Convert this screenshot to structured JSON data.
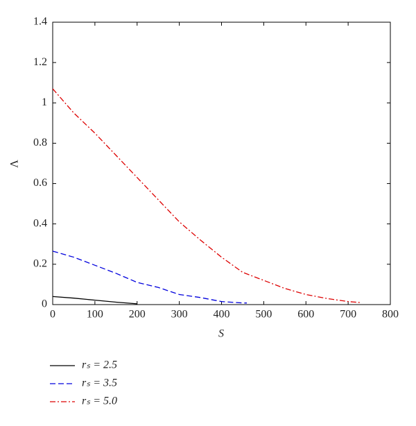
{
  "chart_data": {
    "type": "line",
    "x_label": "S",
    "y_label": "Λ",
    "xlim": [
      0,
      800
    ],
    "xticks": [
      0,
      100,
      200,
      300,
      400,
      500,
      600,
      700,
      800
    ],
    "ylim": [
      0,
      1.4
    ],
    "yticks": [
      0,
      0.2,
      0.4,
      0.6,
      0.8,
      1,
      1.2,
      1.4
    ],
    "grid": false,
    "legend": "below",
    "series": [
      {
        "name": "rₛ = 2.5",
        "color": "#000000",
        "dash": "solid",
        "x": [
          0,
          50,
          100,
          150,
          200
        ],
        "values": [
          0.04,
          0.032,
          0.022,
          0.012,
          0.004
        ]
      },
      {
        "name": "rₛ = 3.5",
        "color": "#0000dd",
        "dash": "dashed",
        "x": [
          0,
          50,
          100,
          150,
          200,
          250,
          300,
          350,
          400,
          450,
          460
        ],
        "values": [
          0.265,
          0.235,
          0.195,
          0.155,
          0.11,
          0.085,
          0.05,
          0.035,
          0.015,
          0.008,
          0.008
        ]
      },
      {
        "name": "rₛ = 5.0",
        "color": "#dd0000",
        "dash": "dashdot",
        "x": [
          0,
          50,
          100,
          150,
          200,
          250,
          300,
          350,
          400,
          450,
          500,
          550,
          600,
          650,
          700,
          730
        ],
        "values": [
          1.07,
          0.95,
          0.85,
          0.74,
          0.63,
          0.52,
          0.41,
          0.32,
          0.235,
          0.16,
          0.12,
          0.08,
          0.05,
          0.03,
          0.015,
          0.01
        ]
      }
    ]
  }
}
